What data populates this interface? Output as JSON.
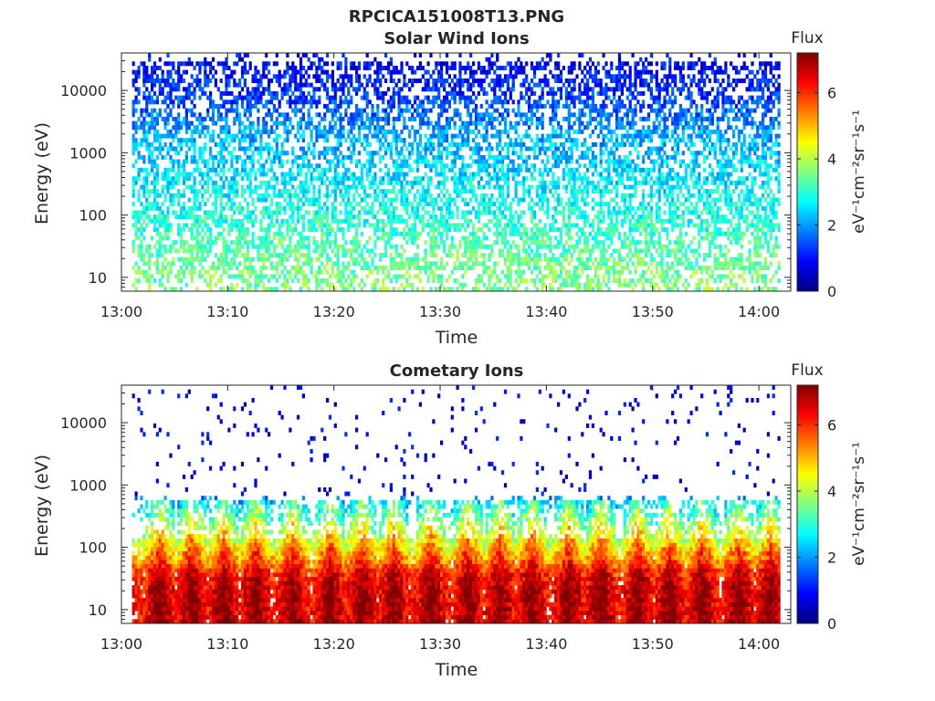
{
  "figure_title": "RPCICA151008T13.PNG",
  "colorbar_colors": [
    "#00007f",
    "#0000ff",
    "#007fff",
    "#00ffff",
    "#7fff7f",
    "#ffff00",
    "#ff7f00",
    "#ff0000",
    "#7f0000"
  ],
  "chart_data": [
    {
      "type": "heatmap",
      "title": "Solar Wind Ions",
      "xlabel": "Time",
      "ylabel": "Energy (eV)",
      "x_ticks": [
        "13:00",
        "13:10",
        "13:20",
        "13:30",
        "13:40",
        "13:50",
        "14:00"
      ],
      "xlim_minutes": [
        0,
        63
      ],
      "data_range_minutes": [
        1,
        62
      ],
      "y_scale": "log",
      "y_ticks": [
        10,
        100,
        1000,
        10000
      ],
      "y_tick_labels": [
        "10",
        "100",
        "1000",
        "10000"
      ],
      "ylim": [
        6,
        40000
      ],
      "colorbar": {
        "title": "Flux",
        "label": "eV⁻¹cm⁻²sr⁻¹s⁻¹",
        "range": [
          0,
          7.2
        ],
        "ticks": [
          0,
          2,
          4,
          6
        ],
        "tick_labels": [
          "0",
          "2",
          "4",
          "6"
        ]
      },
      "spike_minutes": [
        3.5,
        12.5,
        22,
        25.5,
        32,
        35.5,
        48.5,
        52,
        55,
        58
      ],
      "flux_profile": [
        {
          "energy": 8,
          "flux": 3.6
        },
        {
          "energy": 30,
          "flux": 3.3
        },
        {
          "energy": 100,
          "flux": 2.9
        },
        {
          "energy": 500,
          "flux": 2.5
        },
        {
          "energy": 2000,
          "flux": 2.1
        },
        {
          "energy": 10000,
          "flux": 1.2
        },
        {
          "energy": 30000,
          "flux": 0.9
        }
      ]
    },
    {
      "type": "heatmap",
      "title": "Cometary Ions",
      "xlabel": "Time",
      "ylabel": "Energy (eV)",
      "x_ticks": [
        "13:00",
        "13:10",
        "13:20",
        "13:30",
        "13:40",
        "13:50",
        "14:00"
      ],
      "xlim_minutes": [
        0,
        63
      ],
      "data_range_minutes": [
        1,
        62
      ],
      "y_scale": "log",
      "y_ticks": [
        10,
        100,
        1000,
        10000
      ],
      "y_tick_labels": [
        "10",
        "100",
        "1000",
        "10000"
      ],
      "ylim": [
        6,
        40000
      ],
      "colorbar": {
        "title": "Flux",
        "label": "eV⁻¹cm⁻²sr⁻¹s⁻¹",
        "range": [
          0,
          7.2
        ],
        "ticks": [
          0,
          2,
          4,
          6
        ],
        "tick_labels": [
          "0",
          "2",
          "4",
          "6"
        ]
      },
      "spike_minutes": [
        3.5,
        6.5,
        9.5,
        12.5,
        16,
        19.5,
        22.5,
        25.5,
        29,
        32.5,
        35.5,
        38.5,
        42,
        45,
        48.5,
        51.5,
        54.5,
        58,
        61
      ],
      "flux_profile": [
        {
          "energy": 20,
          "flux": 6.2
        },
        {
          "energy": 40,
          "flux": 5.8
        },
        {
          "energy": 100,
          "flux": 4.2
        },
        {
          "energy": 300,
          "flux": 2.8
        },
        {
          "energy": 1000,
          "flux": 1.2
        },
        {
          "energy": 10000,
          "flux": 0.8
        }
      ]
    }
  ]
}
